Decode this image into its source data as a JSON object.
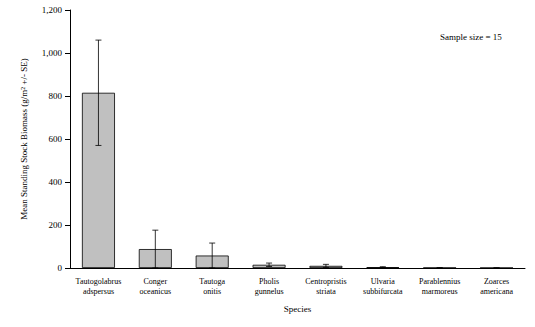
{
  "chart_data": {
    "type": "bar",
    "categories": [
      "Tautogolabrus adspersus",
      "Conger oceanicus",
      "Tautoga onitis",
      "Pholis gunnelus",
      "Centropristis striata",
      "Ulvaria subbifurcata",
      "Parablennius marmoreus",
      "Zoarces americana"
    ],
    "values": [
      815,
      88,
      58,
      15,
      10,
      4,
      1,
      0.5
    ],
    "errors": [
      245,
      88,
      58,
      8,
      7,
      2,
      0.5,
      0.3
    ],
    "color": "#c0c0c0",
    "x_label": "Species",
    "y_label": "Mean Standing Stock Biomass (g/m² +/- SE)",
    "annotation": "Sample size = 15",
    "ylim": [
      0,
      1200
    ],
    "yticks": [
      0,
      200,
      400,
      600,
      800,
      {
        "value": 1000,
        "label": "1,000"
      },
      {
        "value": 1200,
        "label": "1,200"
      }
    ],
    "grid": false
  }
}
